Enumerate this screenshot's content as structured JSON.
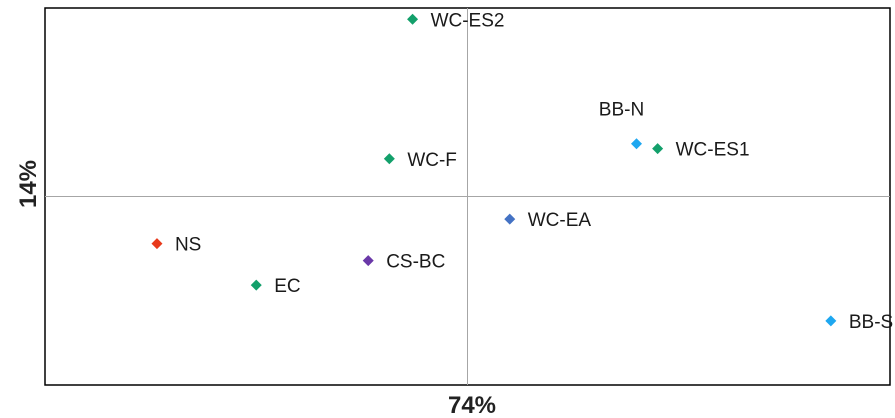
{
  "chart_data": {
    "type": "scatter",
    "title": "",
    "xlabel": "74%",
    "ylabel": "14%",
    "xlim": [
      -10,
      10
    ],
    "ylim": [
      -5,
      5
    ],
    "grid": false,
    "legend": "none",
    "reference_lines": {
      "x": 0,
      "y": 0,
      "color": "#a6a6a6"
    },
    "points": [
      {
        "label": "WC-ES2",
        "x": -1.3,
        "y": 4.7,
        "color": "#13a06b"
      },
      {
        "label": "BB-N",
        "x": 4.0,
        "y": 1.4,
        "color": "#1ea7f0"
      },
      {
        "label": "WC-ES1",
        "x": 4.5,
        "y": 1.27,
        "color": "#13a06b"
      },
      {
        "label": "WC-F",
        "x": -1.85,
        "y": 1.0,
        "color": "#13a06b"
      },
      {
        "label": "WC-EA",
        "x": 1.0,
        "y": -0.6,
        "color": "#4472c4"
      },
      {
        "label": "NS",
        "x": -7.35,
        "y": -1.25,
        "color": "#e8391b"
      },
      {
        "label": "CS-BC",
        "x": -2.35,
        "y": -1.7,
        "color": "#6a38a8"
      },
      {
        "label": "EC",
        "x": -5.0,
        "y": -2.35,
        "color": "#13a06b"
      },
      {
        "label": "BB-S",
        "x": 8.6,
        "y": -3.3,
        "color": "#1ea7f0"
      }
    ]
  }
}
